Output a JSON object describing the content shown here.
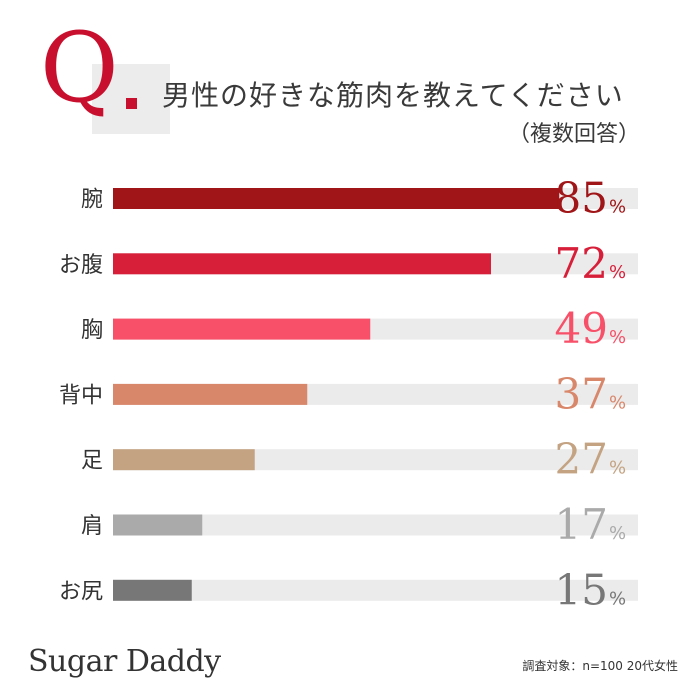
{
  "question": {
    "mark": "Q",
    "text": "男性の好きな筋肉を教えてください",
    "note": "（複数回答）"
  },
  "chart_data": {
    "type": "bar",
    "orientation": "horizontal",
    "title": "男性の好きな筋肉を教えてください",
    "categories": [
      "腕",
      "お腹",
      "胸",
      "背中",
      "足",
      "肩",
      "お尻"
    ],
    "values": [
      85,
      72,
      49,
      37,
      27,
      17,
      15
    ],
    "unit": "%",
    "xlim": [
      0,
      100
    ],
    "bar_colors": [
      "#a01517",
      "#d81f3a",
      "#f75068",
      "#d9876b",
      "#c4a382",
      "#aaaaaa",
      "#777777"
    ],
    "label_colors": [
      "#a01517",
      "#d81f3a",
      "#f75068",
      "#d9876b",
      "#c4a382",
      "#aaaaaa",
      "#777777"
    ],
    "track_color": "#ebebeb"
  },
  "footer": {
    "logo_main": "Sugar Daddy",
    "footnote": "調査対象：n=100 20代女性"
  }
}
